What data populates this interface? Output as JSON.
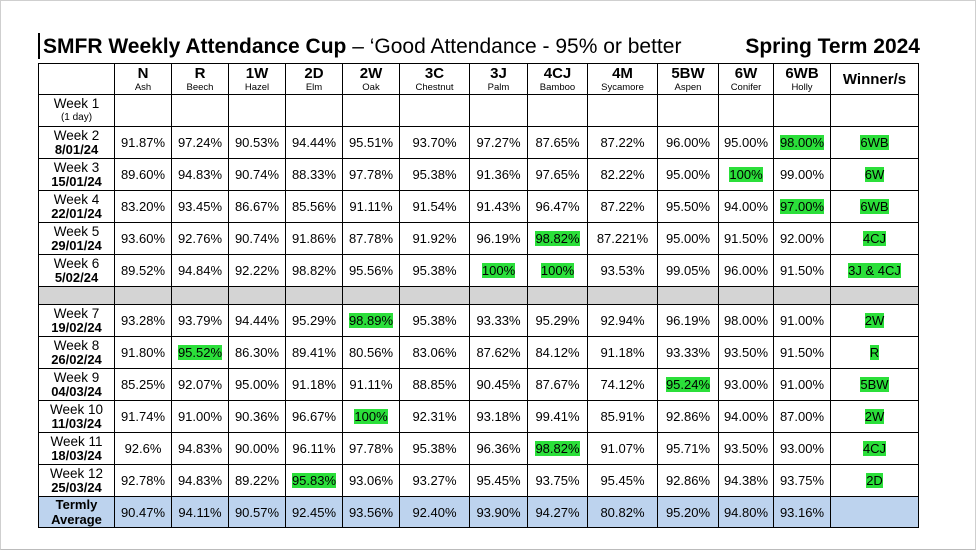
{
  "title": {
    "main": "SMFR Weekly Attendance Cup",
    "sub": " – ‘Good Attendance - 95% or better",
    "term": "Spring Term 2024"
  },
  "columns": [
    {
      "code": "N",
      "name": "Ash"
    },
    {
      "code": "R",
      "name": "Beech"
    },
    {
      "code": "1W",
      "name": "Hazel"
    },
    {
      "code": "2D",
      "name": "Elm"
    },
    {
      "code": "2W",
      "name": "Oak"
    },
    {
      "code": "3C",
      "name": "Chestnut"
    },
    {
      "code": "3J",
      "name": "Palm"
    },
    {
      "code": "4CJ",
      "name": "Bamboo"
    },
    {
      "code": "4M",
      "name": "Sycamore"
    },
    {
      "code": "5BW",
      "name": "Aspen"
    },
    {
      "code": "6W",
      "name": "Conifer"
    },
    {
      "code": "6WB",
      "name": "Holly"
    }
  ],
  "winner_header": "Winner/s",
  "week1": {
    "label": "Week 1",
    "note": "(1 day)"
  },
  "rows_a": [
    {
      "week": "Week 2",
      "date": "8/01/24",
      "values": [
        "91.87%",
        "97.24%",
        "90.53%",
        "94.44%",
        "95.51%",
        "93.70%",
        "97.27%",
        "87.65%",
        "87.22%",
        "96.00%",
        "95.00%",
        "98.00%"
      ],
      "hl": [
        11
      ],
      "winner": "6WB"
    },
    {
      "week": "Week 3",
      "date": "15/01/24",
      "values": [
        "89.60%",
        "94.83%",
        "90.74%",
        "88.33%",
        "97.78%",
        "95.38%",
        "91.36%",
        "97.65%",
        "82.22%",
        "95.00%",
        "100%",
        "99.00%"
      ],
      "hl": [
        10
      ],
      "winner": "6W"
    },
    {
      "week": "Week 4",
      "date": "22/01/24",
      "values": [
        "83.20%",
        "93.45%",
        "86.67%",
        "85.56%",
        "91.11%",
        "91.54%",
        "91.43%",
        "96.47%",
        "87.22%",
        "95.50%",
        "94.00%",
        "97.00%"
      ],
      "hl": [
        11
      ],
      "winner": "6WB"
    },
    {
      "week": "Week 5",
      "date": "29/01/24",
      "values": [
        "93.60%",
        "92.76%",
        "90.74%",
        "91.86%",
        "87.78%",
        "91.92%",
        "96.19%",
        "98.82%",
        "87.221%",
        "95.00%",
        "91.50%",
        "92.00%"
      ],
      "hl": [
        7
      ],
      "winner": "4CJ"
    },
    {
      "week": "Week 6",
      "date": "5/02/24",
      "values": [
        "89.52%",
        "94.84%",
        "92.22%",
        "98.82%",
        "95.56%",
        "95.38%",
        "100%",
        "100%",
        "93.53%",
        "99.05%",
        "96.00%",
        "91.50%"
      ],
      "hl": [
        6,
        7
      ],
      "winner": "3J & 4CJ"
    }
  ],
  "rows_b": [
    {
      "week": "Week 7",
      "date": "19/02/24",
      "values": [
        "93.28%",
        "93.79%",
        "94.44%",
        "95.29%",
        "98.89%",
        "95.38%",
        "93.33%",
        "95.29%",
        "92.94%",
        "96.19%",
        "98.00%",
        "91.00%"
      ],
      "hl": [
        4
      ],
      "winner": "2W"
    },
    {
      "week": "Week 8",
      "date": "26/02/24",
      "values": [
        "91.80%",
        "95.52%",
        "86.30%",
        "89.41%",
        "80.56%",
        "83.06%",
        "87.62%",
        "84.12%",
        "91.18%",
        "93.33%",
        "93.50%",
        "91.50%"
      ],
      "hl": [
        1
      ],
      "winner": "R"
    },
    {
      "week": "Week 9",
      "date": "04/03/24",
      "values": [
        "85.25%",
        "92.07%",
        "95.00%",
        "91.18%",
        "91.11%",
        "88.85%",
        "90.45%",
        "87.67%",
        "74.12%",
        "95.24%",
        "93.00%",
        "91.00%"
      ],
      "hl": [
        9
      ],
      "winner": "5BW"
    },
    {
      "week": "Week 10",
      "date": "11/03/24",
      "values": [
        "91.74%",
        "91.00%",
        "90.36%",
        "96.67%",
        "100%",
        "92.31%",
        "93.18%",
        "99.41%",
        "85.91%",
        "92.86%",
        "94.00%",
        "87.00%"
      ],
      "hl": [
        4
      ],
      "winner": "2W"
    },
    {
      "week": "Week 11",
      "date": "18/03/24",
      "values": [
        "92.6%",
        "94.83%",
        "90.00%",
        "96.11%",
        "97.78%",
        "95.38%",
        "96.36%",
        "98.82%",
        "91.07%",
        "95.71%",
        "93.50%",
        "93.00%"
      ],
      "hl": [
        7
      ],
      "winner": "4CJ"
    },
    {
      "week": "Week 12",
      "date": "25/03/24",
      "values": [
        "92.78%",
        "94.83%",
        "89.22%",
        "95.83%",
        "93.06%",
        "93.27%",
        "95.45%",
        "93.75%",
        "95.45%",
        "92.86%",
        "94.38%",
        "93.75%"
      ],
      "hl": [
        3
      ],
      "winner": "2D"
    }
  ],
  "average": {
    "line1": "Termly",
    "line2": "Average",
    "values": [
      "90.47%",
      "94.11%",
      "90.57%",
      "92.45%",
      "93.56%",
      "92.40%",
      "93.90%",
      "94.27%",
      "80.82%",
      "95.20%",
      "94.80%",
      "93.16%"
    ]
  },
  "colors": {
    "highlight": "#2bdf3a",
    "average_row": "#bdd3ee",
    "separator_row": "#d4d4d4"
  }
}
